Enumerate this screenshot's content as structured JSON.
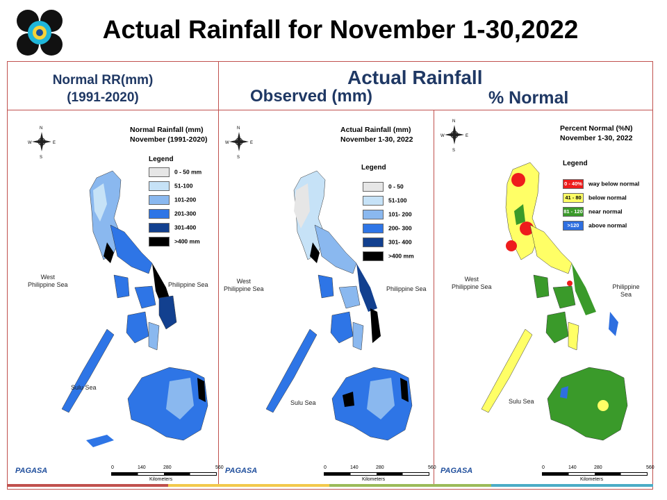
{
  "slide": {
    "title": "Actual Rainfall for November 1-30,2022"
  },
  "headers": {
    "normal_line1": "Normal RR(mm)",
    "normal_line2": "(1991-2020)",
    "actual": "Actual Rainfall",
    "observed": "Observed (mm)",
    "percent": "% Normal"
  },
  "panels": [
    {
      "title_line1": "Normal Rainfall (mm)",
      "title_line2": "November (1991-2020)",
      "legend_title": "Legend",
      "legend": [
        {
          "label": "0 - 50 mm",
          "color": "#e6e6e6"
        },
        {
          "label": "51-100",
          "color": "#c6e2f7"
        },
        {
          "label": "101-200",
          "color": "#8ab8ef"
        },
        {
          "label": "201-300",
          "color": "#2e75e6"
        },
        {
          "label": "301-400",
          "color": "#12408f"
        },
        {
          "label": ">400 mm",
          "color": "#000000"
        }
      ]
    },
    {
      "title_line1": "Actual Rainfall (mm)",
      "title_line2": "November 1-30, 2022",
      "legend_title": "Legend",
      "legend": [
        {
          "label": "0 - 50",
          "color": "#e6e6e6"
        },
        {
          "label": "51-100",
          "color": "#c6e2f7"
        },
        {
          "label": "101- 200",
          "color": "#8ab8ef"
        },
        {
          "label": "200- 300",
          "color": "#2e75e6"
        },
        {
          "label": "301- 400",
          "color": "#12408f"
        },
        {
          "label": ">400 mm",
          "color": "#000000"
        }
      ]
    },
    {
      "title_line1": "Percent Normal (%N)",
      "title_line2": "November 1-30, 2022",
      "legend_title": "Legend",
      "legend": [
        {
          "swatch": "0 - 40%",
          "label": "way below normal",
          "color": "#ee1c1c"
        },
        {
          "swatch": "41 - 80",
          "label": "below normal",
          "color": "#ffff66"
        },
        {
          "swatch": "81 - 120",
          "label": "near normal",
          "color": "#3a9a2a"
        },
        {
          "swatch": ">120",
          "label": "above normal",
          "color": "#2e6fe0"
        }
      ]
    }
  ],
  "map_labels": {
    "west_sea_1": "West",
    "west_sea_2": "Philippine Sea",
    "philippine_sea": "Philippine Sea",
    "sulu_sea": "Sulu Sea",
    "compass_n": "N",
    "compass_s": "S",
    "compass_e": "E",
    "compass_w": "W",
    "scale_ticks": [
      "0",
      "140",
      "280",
      "560"
    ],
    "scale_unit": "Kilometers",
    "agency": "PAGASA"
  },
  "colors": {
    "frame": "#c0504d",
    "header_text": "#1f3864",
    "footer_bar": [
      "#c0504d",
      "#f2c94c",
      "#9bbb59",
      "#4bacc6"
    ]
  }
}
